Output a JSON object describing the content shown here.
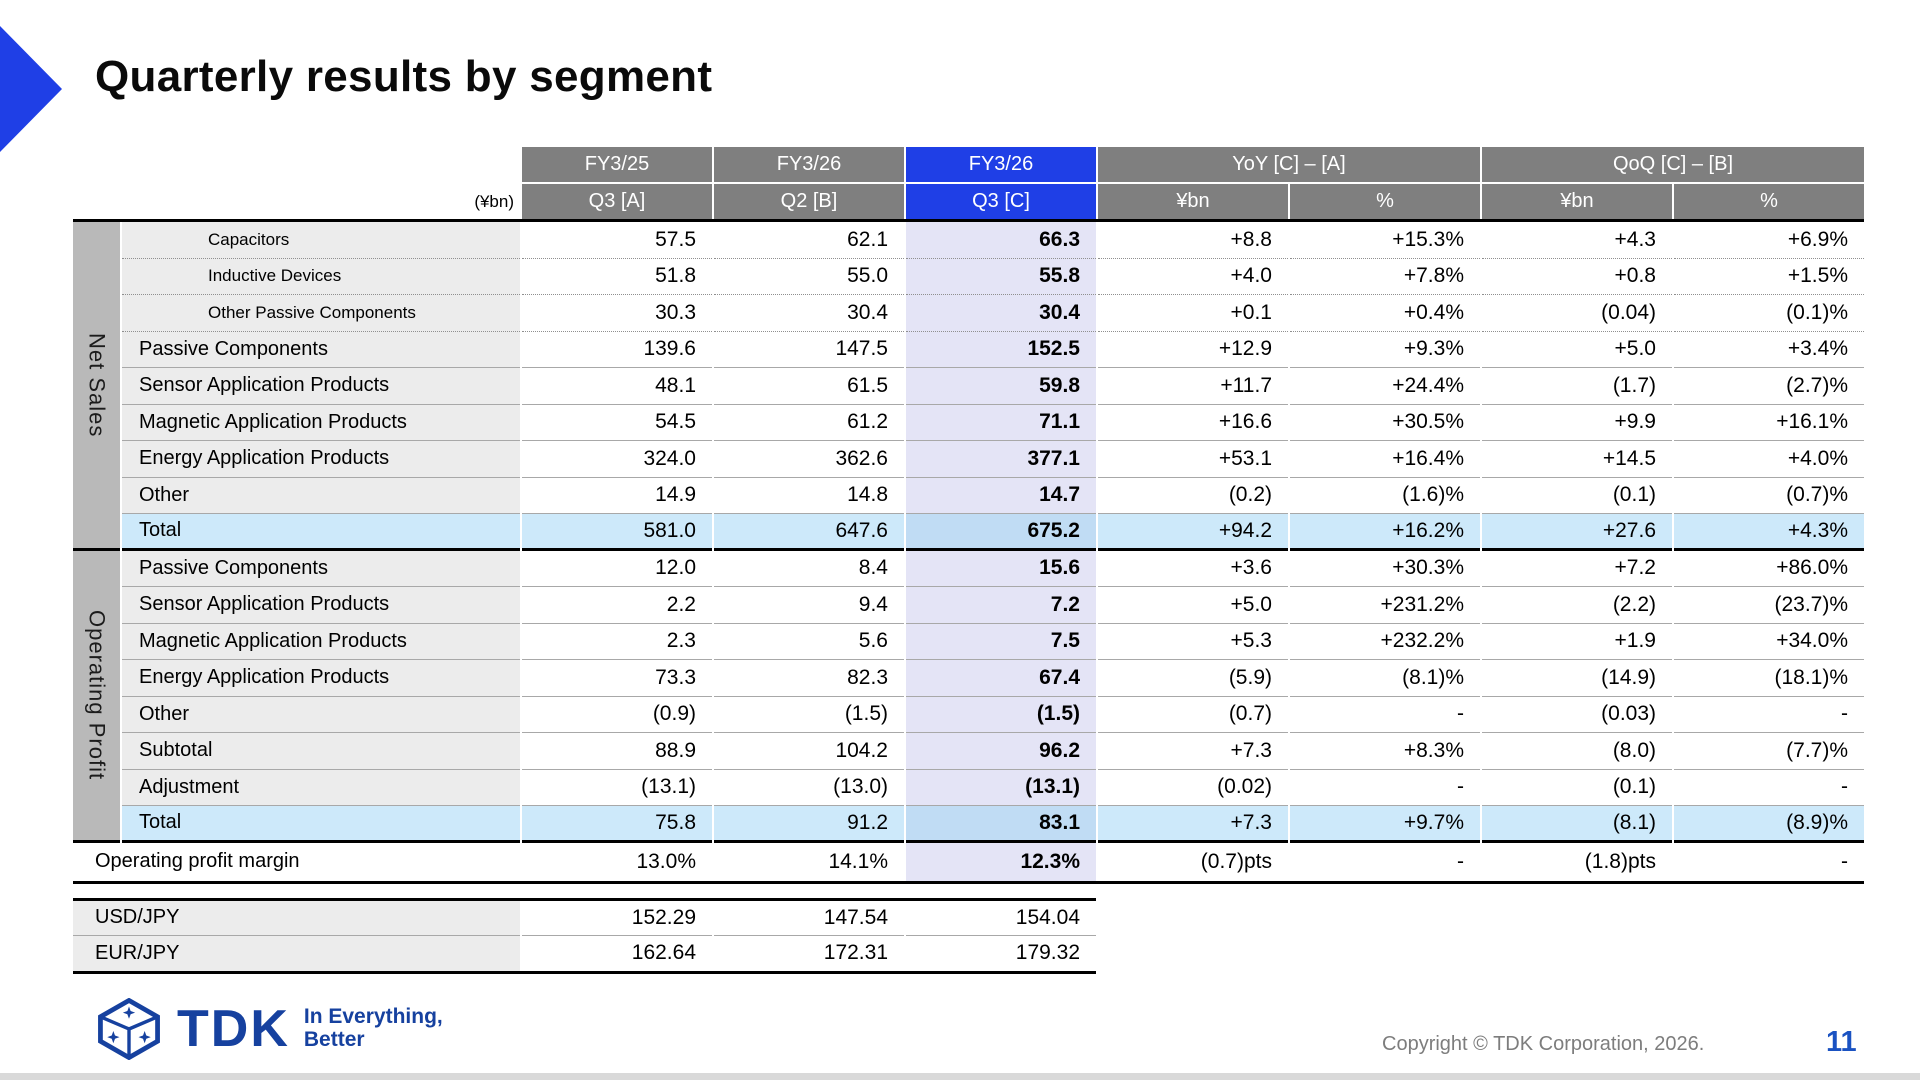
{
  "slide": {
    "title": "Quarterly results by segment",
    "unit_note": "(¥bn)",
    "page_number": "11",
    "copyright": "Copyright  © TDK Corporation, 2026."
  },
  "colors": {
    "accent_blue": "#1f3fe6",
    "header_gray": "#7f7f7f",
    "band_gray": "#b9b9b9",
    "label_gray": "#ececec",
    "q3_column_highlight": "#e4e4f6",
    "total_row_blue": "#cde9fa",
    "total_q3_blue": "#c0dcf4",
    "logo_blue": "#16419f",
    "page_number_blue": "#1a52c2"
  },
  "logo": {
    "brand": "TDK",
    "tagline_line1": "In Everything,",
    "tagline_line2": "Better"
  },
  "table": {
    "header_row1": [
      {
        "label": "FY3/25"
      },
      {
        "label": "FY3/26"
      },
      {
        "label": "FY3/26",
        "highlight": true
      },
      {
        "label": "YoY [C] – [A]",
        "span": 2
      },
      {
        "label": "QoQ [C] – [B]",
        "span": 2
      }
    ],
    "header_row2": [
      {
        "label": "Q3 [A]"
      },
      {
        "label": "Q2 [B]"
      },
      {
        "label": "Q3 [C]",
        "highlight": true
      },
      {
        "label": "¥bn"
      },
      {
        "label": "%"
      },
      {
        "label": "¥bn"
      },
      {
        "label": "%"
      }
    ],
    "sections": [
      {
        "name": "Net Sales",
        "rows": [
          {
            "label": "Capacitors",
            "style": "sub",
            "values": [
              "57.5",
              "62.1",
              "66.3",
              "+8.8",
              "+15.3%",
              "+4.3",
              "+6.9%"
            ]
          },
          {
            "label": "Inductive Devices",
            "style": "sub",
            "values": [
              "51.8",
              "55.0",
              "55.8",
              "+4.0",
              "+7.8%",
              "+0.8",
              "+1.5%"
            ]
          },
          {
            "label": "Other Passive Components",
            "style": "sub",
            "values": [
              "30.3",
              "30.4",
              "30.4",
              "+0.1",
              "+0.4%",
              "(0.04)",
              "(0.1)%"
            ]
          },
          {
            "label": "Passive Components",
            "style": "main",
            "values": [
              "139.6",
              "147.5",
              "152.5",
              "+12.9",
              "+9.3%",
              "+5.0",
              "+3.4%"
            ]
          },
          {
            "label": "Sensor Application Products",
            "style": "main",
            "values": [
              "48.1",
              "61.5",
              "59.8",
              "+11.7",
              "+24.4%",
              "(1.7)",
              "(2.7)%"
            ]
          },
          {
            "label": "Magnetic Application Products",
            "style": "main",
            "values": [
              "54.5",
              "61.2",
              "71.1",
              "+16.6",
              "+30.5%",
              "+9.9",
              "+16.1%"
            ]
          },
          {
            "label": "Energy Application Products",
            "style": "main",
            "values": [
              "324.0",
              "362.6",
              "377.1",
              "+53.1",
              "+16.4%",
              "+14.5",
              "+4.0%"
            ]
          },
          {
            "label": "Other",
            "style": "main",
            "values": [
              "14.9",
              "14.8",
              "14.7",
              "(0.2)",
              "(1.6)%",
              "(0.1)",
              "(0.7)%"
            ]
          },
          {
            "label": "Total",
            "style": "total",
            "values": [
              "581.0",
              "647.6",
              "675.2",
              "+94.2",
              "+16.2%",
              "+27.6",
              "+4.3%"
            ]
          }
        ]
      },
      {
        "name": "Operating Profit",
        "rows": [
          {
            "label": "Passive Components",
            "style": "main",
            "values": [
              "12.0",
              "8.4",
              "15.6",
              "+3.6",
              "+30.3%",
              "+7.2",
              "+86.0%"
            ]
          },
          {
            "label": "Sensor Application Products",
            "style": "main",
            "values": [
              "2.2",
              "9.4",
              "7.2",
              "+5.0",
              "+231.2%",
              "(2.2)",
              "(23.7)%"
            ]
          },
          {
            "label": "Magnetic Application Products",
            "style": "main",
            "values": [
              "2.3",
              "5.6",
              "7.5",
              "+5.3",
              "+232.2%",
              "+1.9",
              "+34.0%"
            ]
          },
          {
            "label": "Energy Application Products",
            "style": "main",
            "values": [
              "73.3",
              "82.3",
              "67.4",
              "(5.9)",
              "(8.1)%",
              "(14.9)",
              "(18.1)%"
            ]
          },
          {
            "label": "Other",
            "style": "main",
            "values": [
              "(0.9)",
              "(1.5)",
              "(1.5)",
              "(0.7)",
              "-",
              "(0.03)",
              "-"
            ]
          },
          {
            "label": "Subtotal",
            "style": "main",
            "values": [
              "88.9",
              "104.2",
              "96.2",
              "+7.3",
              "+8.3%",
              "(8.0)",
              "(7.7)%"
            ]
          },
          {
            "label": "Adjustment",
            "style": "main",
            "values": [
              "(13.1)",
              "(13.0)",
              "(13.1)",
              "(0.02)",
              "-",
              "(0.1)",
              "-"
            ]
          },
          {
            "label": "Total",
            "style": "total",
            "values": [
              "75.8",
              "91.2",
              "83.1",
              "+7.3",
              "+9.7%",
              "(8.1)",
              "(8.9)%"
            ]
          }
        ]
      }
    ],
    "margin_row": {
      "label": "Operating profit margin",
      "values": [
        "13.0%",
        "14.1%",
        "12.3%",
        "(0.7)pts",
        "-",
        "(1.8)pts",
        "-"
      ]
    },
    "fx_rows": [
      {
        "label": "USD/JPY",
        "values": [
          "152.29",
          "147.54",
          "154.04"
        ]
      },
      {
        "label": "EUR/JPY",
        "values": [
          "162.64",
          "172.31",
          "179.32"
        ]
      }
    ]
  }
}
